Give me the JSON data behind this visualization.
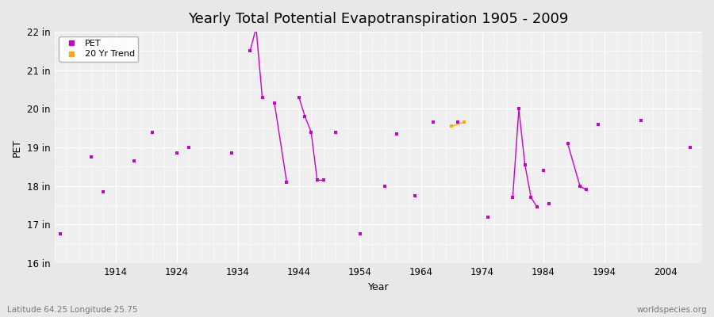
{
  "title": "Yearly Total Potential Evapotranspiration 1905 - 2009",
  "xlabel": "Year",
  "ylabel": "PET",
  "footnote_left": "Latitude 64.25 Longitude 25.75",
  "footnote_right": "worldspecies.org",
  "ylim": [
    16,
    22
  ],
  "ytick_labels": [
    "16 in",
    "17 in",
    "18 in",
    "19 in",
    "20 in",
    "21 in",
    "22 in"
  ],
  "ytick_values": [
    16,
    17,
    18,
    19,
    20,
    21,
    22
  ],
  "xlim": [
    1904,
    2010
  ],
  "xtick_values": [
    1914,
    1924,
    1934,
    1944,
    1954,
    1964,
    1974,
    1984,
    1994,
    2004
  ],
  "background_color": "#e8e8e8",
  "plot_bg_color": "#efefef",
  "line_color": "#cc00cc",
  "trend_color": "#ffaa00",
  "segments": [
    [
      [
        1936,
        21.5
      ],
      [
        1937,
        22.1
      ],
      [
        1938,
        20.3
      ]
    ],
    [
      [
        1940,
        20.15
      ],
      [
        1942,
        18.1
      ]
    ],
    [
      [
        1944,
        20.3
      ],
      [
        1945,
        19.8
      ],
      [
        1946,
        19.4
      ],
      [
        1947,
        18.15
      ],
      [
        1948,
        18.15
      ]
    ],
    [
      [
        1979,
        17.7
      ],
      [
        1980,
        20.0
      ],
      [
        1981,
        18.55
      ],
      [
        1982,
        17.7
      ],
      [
        1983,
        17.45
      ]
    ],
    [
      [
        1988,
        19.1
      ],
      [
        1990,
        18.0
      ],
      [
        1991,
        17.9
      ]
    ]
  ],
  "isolated_points": [
    [
      1905,
      16.75
    ],
    [
      1910,
      18.75
    ],
    [
      1912,
      17.85
    ],
    [
      1917,
      18.65
    ],
    [
      1920,
      19.4
    ],
    [
      1924,
      18.85
    ],
    [
      1926,
      19.0
    ],
    [
      1933,
      18.85
    ],
    [
      1950,
      19.4
    ],
    [
      1954,
      16.75
    ],
    [
      1958,
      18.0
    ],
    [
      1960,
      19.35
    ],
    [
      1963,
      17.75
    ],
    [
      1966,
      19.65
    ],
    [
      1970,
      19.65
    ],
    [
      1971,
      19.65
    ],
    [
      1975,
      17.2
    ],
    [
      1984,
      18.4
    ],
    [
      1985,
      17.55
    ],
    [
      1993,
      19.6
    ],
    [
      2000,
      19.7
    ],
    [
      2008,
      19.0
    ]
  ],
  "trend_segments": [
    [
      [
        1969,
        19.55
      ],
      [
        1971,
        19.65
      ]
    ]
  ],
  "marker_size": 3,
  "line_width": 1.0,
  "title_fontsize": 13,
  "label_fontsize": 9,
  "tick_fontsize": 8.5
}
